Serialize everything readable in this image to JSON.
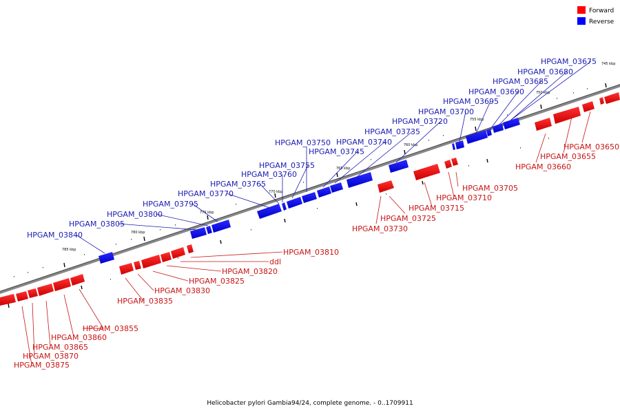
{
  "legend": {
    "forward_label": "Forward",
    "reverse_label": "Reverse",
    "forward_color": "#ff0000",
    "reverse_color": "#0000ff"
  },
  "caption": "Helicobacter pylori Gambia94/24, complete genome. - 0..1709911",
  "scale_labels": [
    "745 kbp",
    "750 kbp",
    "755 kbp",
    "760 kbp",
    "765 kbp",
    "770 kbp",
    "775 kbp",
    "780 kbp",
    "785 kbp"
  ],
  "reverse_genes": [
    "HPGAM_03675",
    "HPGAM_03680",
    "HPGAM_03685",
    "HPGAM_03690",
    "HPGAM_03695",
    "HPGAM_03700",
    "HPGAM_03720",
    "HPGAM_03735",
    "HPGAM_03740",
    "HPGAM_03745",
    "HPGAM_03750",
    "HPGAM_03755",
    "HPGAM_03760",
    "HPGAM_03765",
    "HPGAM_03770",
    "HPGAM_03795",
    "HPGAM_03800",
    "HPGAM_03805",
    "HPGAM_03840"
  ],
  "forward_genes": [
    "HPGAM_03650",
    "HPGAM_03655",
    "HPGAM_03660",
    "HPGAM_03705",
    "HPGAM_03710",
    "HPGAM_03715",
    "HPGAM_03725",
    "HPGAM_03730",
    "HPGAM_03810",
    "ddl",
    "HPGAM_03820",
    "HPGAM_03825",
    "HPGAM_03830",
    "HPGAM_03835",
    "HPGAM_03855",
    "HPGAM_03860",
    "HPGAM_03865",
    "HPGAM_03870",
    "HPGAM_03875"
  ]
}
